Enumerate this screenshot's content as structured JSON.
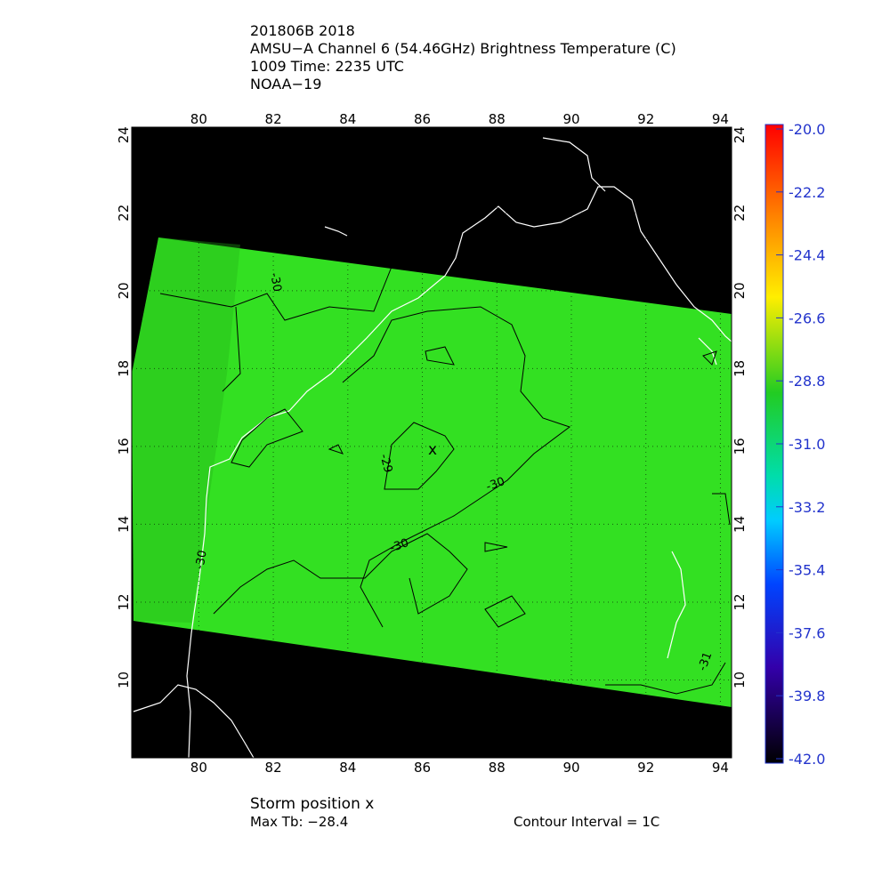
{
  "header": {
    "lines": [
      "201806B 2018",
      "AMSU−A Channel 6 (54.46GHz) Brightness Temperature (C)",
      "1009 Time: 2235 UTC",
      "NOAA−19"
    ]
  },
  "map": {
    "xlim": [
      78.2,
      94.3
    ],
    "ylim": [
      8.0,
      24.2
    ],
    "xticks": [
      80,
      82,
      84,
      86,
      88,
      90,
      92,
      94
    ],
    "yticks": [
      10,
      12,
      14,
      16,
      18,
      20,
      22,
      24
    ],
    "contour_labels": [
      "-30",
      "-29",
      "-30",
      "-30",
      "-31",
      "-30"
    ],
    "storm_marker": "x"
  },
  "colorbar": {
    "lim": [
      -42,
      -20
    ],
    "ticks": [
      {
        "value": -20,
        "label": "-20.0"
      },
      {
        "value": -22.2,
        "label": "-22.2"
      },
      {
        "value": -24.4,
        "label": "-24.4"
      },
      {
        "value": -26.6,
        "label": "-26.6"
      },
      {
        "value": -28.8,
        "label": "-28.8"
      },
      {
        "value": -31,
        "label": "-31.0"
      },
      {
        "value": -33.2,
        "label": "-33.2"
      },
      {
        "value": -35.4,
        "label": "-35.4"
      },
      {
        "value": -37.6,
        "label": "-37.6"
      },
      {
        "value": -39.8,
        "label": "-39.8"
      },
      {
        "value": -42,
        "label": "-42.0"
      }
    ]
  },
  "footer": {
    "storm_position": "Storm position x",
    "max_tb": "Max Tb: −28.4",
    "contour_interval": "Contour Interval = 1C"
  }
}
